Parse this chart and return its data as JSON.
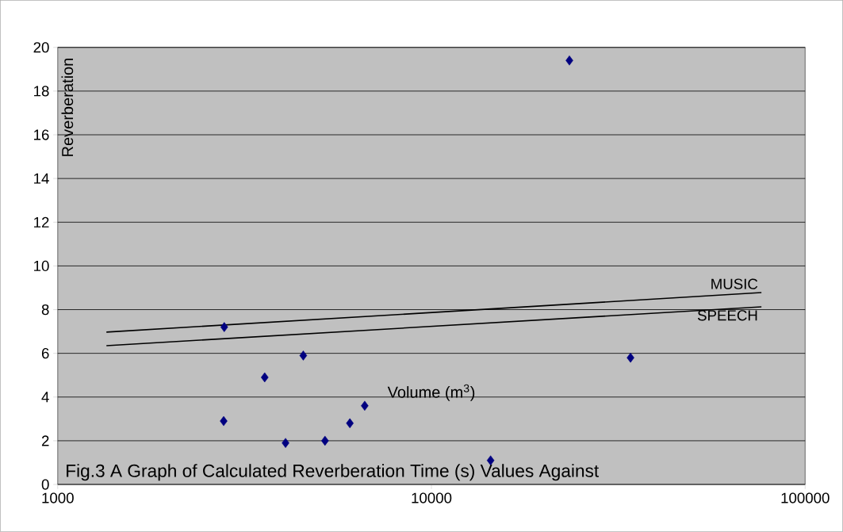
{
  "chart_data": {
    "type": "scatter",
    "title": "Fig.3   A Graph of Calculated Reverberation Time (s) Values Against",
    "xlabel": "Volume (m$^{3}$)",
    "ylabel": "Reverberation",
    "log": "x",
    "xlim": [
      1000,
      100000
    ],
    "xticks": [
      1000,
      10000,
      100000
    ],
    "ylim": [
      0,
      20
    ],
    "yticks": [
      0,
      2,
      4,
      6,
      8,
      10,
      12,
      14,
      16,
      18,
      20
    ],
    "grid": "y",
    "legend": false,
    "series": [
      {
        "marker": "diamond",
        "color": "#000080",
        "x": [
          2790,
          2780,
          3580,
          4540,
          4070,
          5190,
          6050,
          6630,
          23400,
          34100,
          14400
        ],
        "values": [
          7.2,
          2.9,
          4.9,
          5.9,
          1.9,
          2.0,
          2.8,
          3.6,
          19.4,
          5.8,
          1.1
        ]
      },
      {
        "type": "line",
        "marker": "none",
        "name": "MUSIC",
        "color": "#000000",
        "x": [
          1350,
          76400
        ],
        "values": [
          6.97,
          8.78
        ]
      },
      {
        "type": "line",
        "marker": "none",
        "name": "SPEECH",
        "color": "#000000",
        "x": [
          1350,
          76400
        ],
        "values": [
          6.35,
          8.13
        ]
      }
    ]
  }
}
